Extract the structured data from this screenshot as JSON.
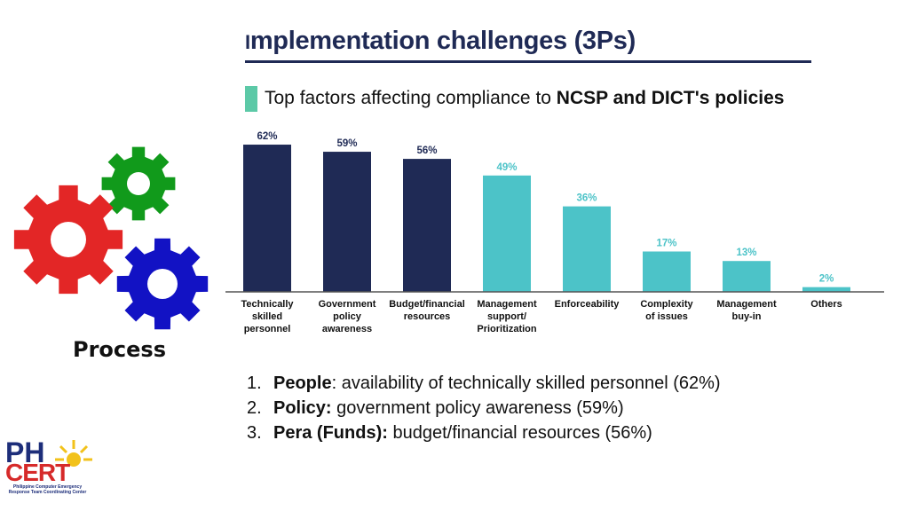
{
  "slide": {
    "title_first_letter": "I",
    "title_rest": "mplementation challenges (3Ps)",
    "subtitle_prefix": "Top factors affecting compliance to ",
    "subtitle_bold": "NCSP and DICT's policies",
    "process_label": "Process",
    "list": [
      {
        "num": "1.",
        "bold": "People",
        "text": ": availability of technically skilled personnel (62%)"
      },
      {
        "num": "2.",
        "bold": "Policy:",
        "text": " government policy awareness (59%)"
      },
      {
        "num": "3.",
        "bold": "Pera (Funds):",
        "text": " budget/financial resources (56%)"
      }
    ],
    "logo": {
      "line1": "PH",
      "line2": "CERT",
      "tagline": "Philippine Computer Emergency Response Team Coordinating Center"
    }
  },
  "colors": {
    "dark_bar": "#1f2a55",
    "light_bar": "#4cc3c8",
    "title": "#1f2a55",
    "accent_marker": "#5cc9a7",
    "gear_green": "#119a1b",
    "gear_red": "#e32626",
    "gear_blue": "#1212c4"
  },
  "icons": [
    "gear-green-icon",
    "gear-red-icon",
    "gear-blue-icon",
    "sun-icon"
  ],
  "chart_data": {
    "type": "bar",
    "categories": [
      [
        "Technically",
        "skilled",
        "personnel"
      ],
      [
        "Government",
        "policy",
        "awareness"
      ],
      [
        "Budget/financial",
        "resources"
      ],
      [
        "Management",
        "support/",
        "Prioritization"
      ],
      [
        "Enforceability"
      ],
      [
        "Complexity",
        "of issues"
      ],
      [
        "Management",
        "buy-in"
      ],
      [
        "Others"
      ]
    ],
    "values": [
      62,
      59,
      56,
      49,
      36,
      17,
      13,
      2
    ],
    "labels": [
      "62%",
      "59%",
      "56%",
      "49%",
      "36%",
      "17%",
      "13%",
      "2%"
    ],
    "highlight": [
      true,
      true,
      true,
      false,
      false,
      false,
      false,
      false
    ],
    "ylim": [
      0,
      65
    ],
    "grid": false,
    "title": "",
    "xlabel": "",
    "ylabel": ""
  }
}
